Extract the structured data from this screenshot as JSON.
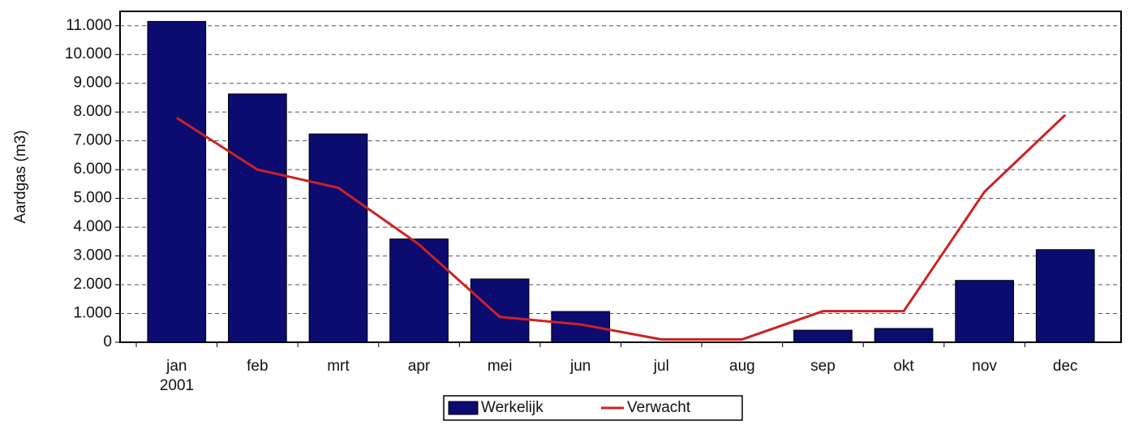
{
  "chart_data": {
    "type": "bar_line",
    "y_label": "Aardgas (m3)",
    "categories": [
      "jan",
      "feb",
      "mrt",
      "apr",
      "mei",
      "jun",
      "jul",
      "aug",
      "sep",
      "okt",
      "nov",
      "dec"
    ],
    "year_label": "2001",
    "series": [
      {
        "name": "Werkelijk",
        "kind": "bar",
        "color": "#0b0b70",
        "values": [
          11150,
          8630,
          7240,
          3590,
          2200,
          1070,
          0,
          0,
          420,
          480,
          2150,
          3220
        ]
      },
      {
        "name": "Verwacht",
        "kind": "line",
        "color": "#cc2222",
        "values": [
          7800,
          6000,
          5370,
          3400,
          880,
          620,
          100,
          100,
          1080,
          1080,
          5230,
          7900
        ]
      }
    ],
    "ylim": [
      0,
      11500
    ],
    "yticks": [
      0,
      {
        "value": 1000,
        "label": "1.000"
      },
      {
        "value": 2000,
        "label": "2.000"
      },
      {
        "value": 3000,
        "label": "3.000"
      },
      {
        "value": 4000,
        "label": "4.000"
      },
      {
        "value": 5000,
        "label": "5.000"
      },
      {
        "value": 6000,
        "label": "6.000"
      },
      {
        "value": 7000,
        "label": "7.000"
      },
      {
        "value": 8000,
        "label": "8.000"
      },
      {
        "value": 9000,
        "label": "9.000"
      },
      {
        "value": 10000,
        "label": "10.000"
      },
      {
        "value": 11000,
        "label": "11.000"
      }
    ],
    "grid": true
  }
}
